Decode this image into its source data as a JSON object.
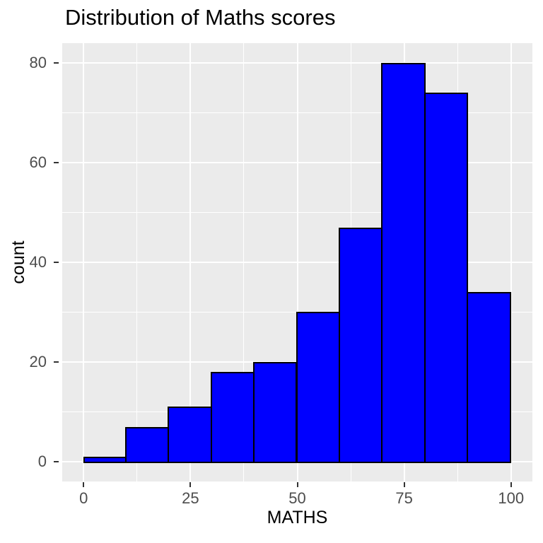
{
  "title": "Distribution of Maths scores",
  "chart_data": {
    "type": "bar",
    "subtype": "histogram",
    "title": "Distribution of Maths scores",
    "xlabel": "MATHS",
    "ylabel": "count",
    "bin_start": 0,
    "bin_width": 10,
    "bin_edges": [
      0,
      10,
      20,
      30,
      40,
      50,
      60,
      70,
      80,
      90,
      100
    ],
    "counts": [
      1,
      7,
      11,
      18,
      20,
      30,
      47,
      80,
      74,
      34
    ],
    "x_ticks": [
      0,
      25,
      50,
      75,
      100
    ],
    "y_ticks": [
      0,
      20,
      40,
      60,
      80
    ],
    "x_minor_ticks": [
      12.5,
      37.5,
      62.5,
      87.5
    ],
    "y_minor_ticks": [
      10,
      30,
      50,
      70
    ],
    "xlim": [
      -5,
      105
    ],
    "ylim": [
      -4,
      84
    ],
    "grid": true,
    "legend_position": "none",
    "colors": {
      "bar_fill": "#0000FF",
      "bar_stroke": "#000000",
      "panel_background": "#EBEBEB",
      "grid_major": "#FFFFFF",
      "grid_minor": "#FFFFFF",
      "tick_mark": "#333333",
      "tick_label": "#4D4D4D",
      "title_text": "#000000",
      "axis_title_text": "#000000",
      "figure_background": "#FFFFFF"
    }
  }
}
